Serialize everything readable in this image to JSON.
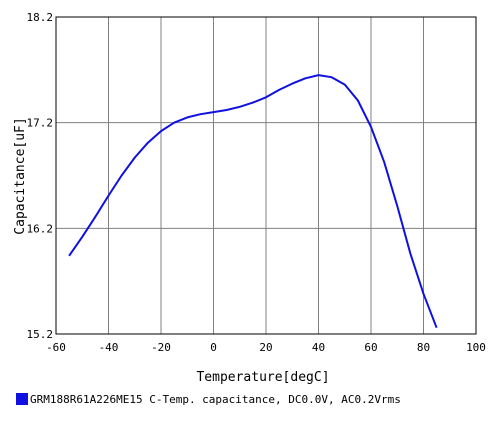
{
  "chart_data": {
    "type": "line",
    "title": "",
    "xlabel": "Temperature[degC]",
    "ylabel": "Capacitance[uF]",
    "xlim": [
      -60,
      100
    ],
    "ylim": [
      15.2,
      18.2
    ],
    "xticks": [
      -60,
      -40,
      -20,
      0,
      20,
      40,
      60,
      80,
      100
    ],
    "xtick_labels": [
      "-60",
      "-40",
      "-20",
      "0",
      "20",
      "40",
      "60",
      "80",
      "100"
    ],
    "yticks": [
      15.2,
      16.2,
      17.2,
      18.2
    ],
    "ytick_labels": [
      "15.2",
      "16.2",
      "17.2",
      "18.2"
    ],
    "grid": true,
    "legend_position": "bottom-left",
    "series": [
      {
        "name": "GRM188R61A226ME15 C-Temp. capacitance, DC0.0V, AC0.2Vrms",
        "color": "#1010e0",
        "x": [
          -55,
          -50,
          -45,
          -40,
          -35,
          -30,
          -25,
          -20,
          -15,
          -10,
          -5,
          0,
          5,
          10,
          15,
          20,
          25,
          30,
          35,
          40,
          45,
          50,
          55,
          60,
          65,
          70,
          75,
          80,
          85
        ],
        "y": [
          15.94,
          16.12,
          16.31,
          16.51,
          16.7,
          16.87,
          17.01,
          17.12,
          17.2,
          17.25,
          17.28,
          17.3,
          17.32,
          17.35,
          17.39,
          17.44,
          17.51,
          17.57,
          17.62,
          17.65,
          17.63,
          17.56,
          17.41,
          17.16,
          16.83,
          16.41,
          15.96,
          15.58,
          15.26
        ]
      }
    ]
  }
}
